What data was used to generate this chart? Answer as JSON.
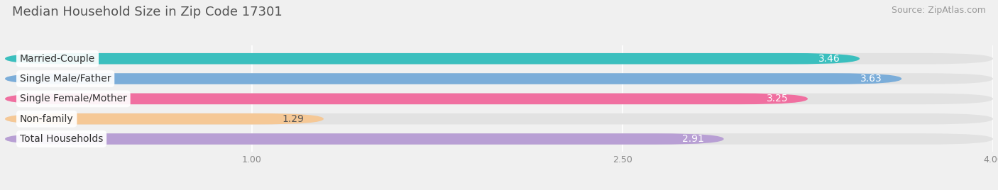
{
  "title": "Median Household Size in Zip Code 17301",
  "source": "Source: ZipAtlas.com",
  "categories": [
    "Married-Couple",
    "Single Male/Father",
    "Single Female/Mother",
    "Non-family",
    "Total Households"
  ],
  "values": [
    3.46,
    3.63,
    3.25,
    1.29,
    2.91
  ],
  "bar_colors": [
    "#3bbfbe",
    "#7badd9",
    "#f06fa0",
    "#f5c896",
    "#b89fd4"
  ],
  "value_label_colors": [
    "#ffffff",
    "#ffffff",
    "#ffffff",
    "#555555",
    "#ffffff"
  ],
  "xlim_start": 0.0,
  "xlim_end": 4.0,
  "xticks": [
    1.0,
    2.5,
    4.0
  ],
  "background_color": "#f0f0f0",
  "bar_bg_color": "#e2e2e2",
  "title_fontsize": 13,
  "source_fontsize": 9,
  "label_fontsize": 10,
  "value_fontsize": 10,
  "tick_fontsize": 9,
  "bar_height": 0.55,
  "bar_gap": 1.0
}
